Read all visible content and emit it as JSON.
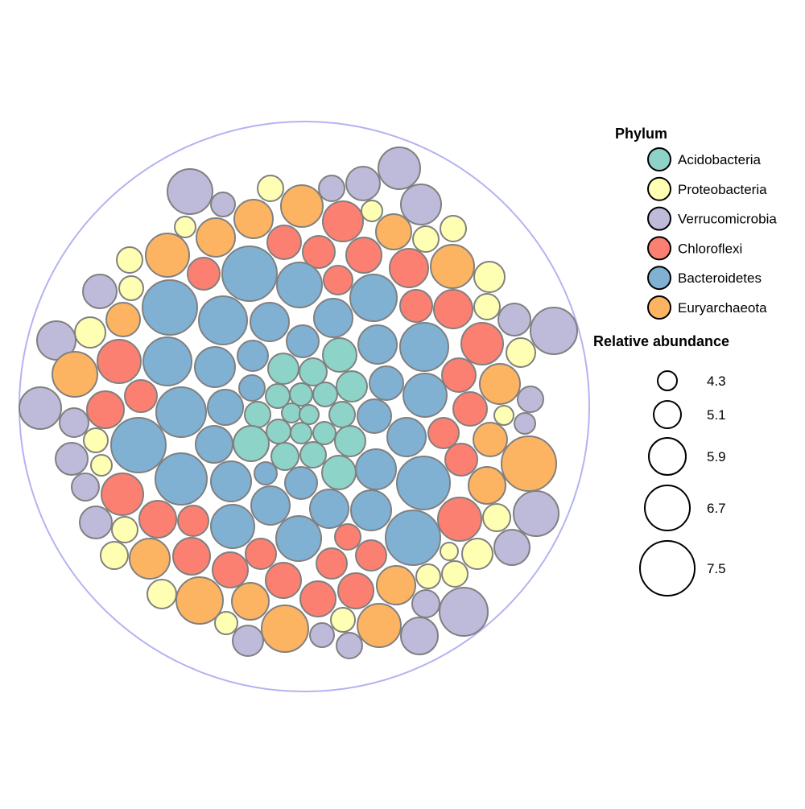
{
  "chart_data": {
    "type": "packed bubble",
    "legends": {
      "color_title": "Phylum",
      "size_title": "Relative abundance"
    },
    "phyla": [
      {
        "name": "Acidobacteria",
        "color": "#8dd3c7"
      },
      {
        "name": "Proteobacteria",
        "color": "#ffffb3"
      },
      {
        "name": "Verrucomicrobia",
        "color": "#bebada"
      },
      {
        "name": "Chloroflexi",
        "color": "#fb8072"
      },
      {
        "name": "Bacteroidetes",
        "color": "#80b1d3"
      },
      {
        "name": "Euryarchaeota",
        "color": "#fdb462"
      }
    ],
    "size_legend": {
      "values": [
        4.3,
        5.1,
        5.9,
        6.7,
        7.5
      ]
    },
    "boundary_color": "#b3b3f2",
    "bubble_stroke": "#808080"
  }
}
